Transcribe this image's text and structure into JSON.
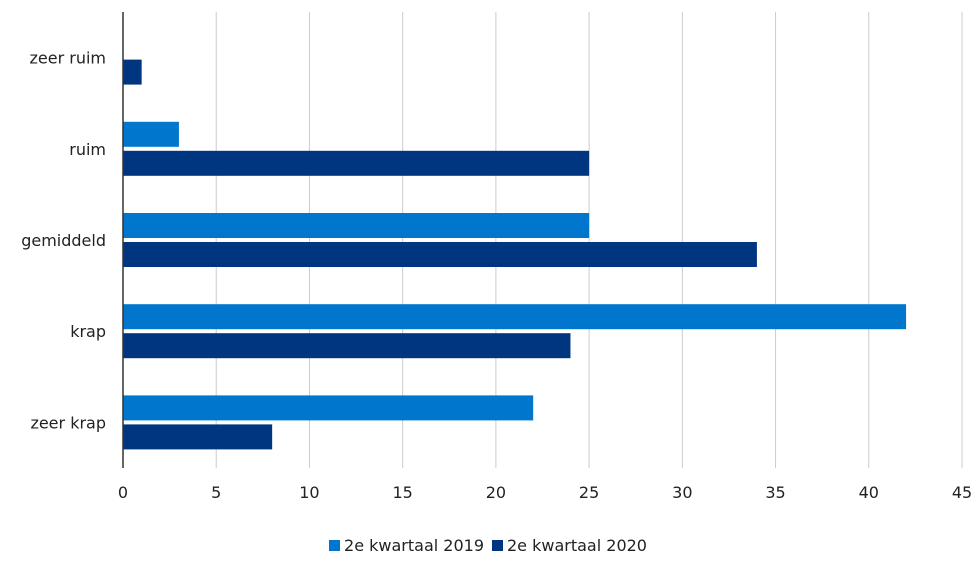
{
  "chart_data": {
    "type": "bar",
    "orientation": "horizontal",
    "categories": [
      "zeer ruim",
      "ruim",
      "gemiddeld",
      "krap",
      "zeer krap"
    ],
    "series": [
      {
        "name": "2e kwartaal 2019",
        "color": "#0077cc",
        "values": [
          0,
          3,
          25,
          42,
          22
        ]
      },
      {
        "name": "2e kwartaal 2020",
        "color": "#003580",
        "values": [
          1,
          25,
          34,
          24,
          8
        ]
      }
    ],
    "xlim": [
      0,
      45
    ],
    "xticks": [
      "0",
      "5",
      "10",
      "15",
      "20",
      "25",
      "30",
      "35",
      "40",
      "45"
    ],
    "grid": true,
    "legend_position": "bottom"
  }
}
